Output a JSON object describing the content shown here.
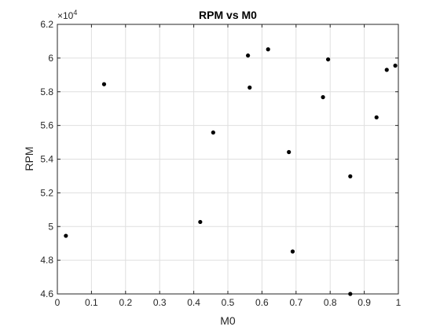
{
  "chart_data": {
    "type": "scatter",
    "title": "RPM vs M0",
    "xlabel": "M0",
    "ylabel": "RPM",
    "exponent_label": "×10",
    "exponent_power": "4",
    "xlim": [
      0,
      1
    ],
    "ylim": [
      46000,
      62000
    ],
    "grid": true,
    "xticks": [
      {
        "value": 0,
        "label": "0"
      },
      {
        "value": 0.1,
        "label": "0.1"
      },
      {
        "value": 0.2,
        "label": "0.2"
      },
      {
        "value": 0.3,
        "label": "0.3"
      },
      {
        "value": 0.4,
        "label": "0.4"
      },
      {
        "value": 0.5,
        "label": "0.5"
      },
      {
        "value": 0.6,
        "label": "0.6"
      },
      {
        "value": 0.7,
        "label": "0.7"
      },
      {
        "value": 0.8,
        "label": "0.8"
      },
      {
        "value": 0.9,
        "label": "0.9"
      },
      {
        "value": 1,
        "label": "1"
      }
    ],
    "yticks": [
      {
        "value": 46000,
        "label": "4.6"
      },
      {
        "value": 48000,
        "label": "4.8"
      },
      {
        "value": 50000,
        "label": "5"
      },
      {
        "value": 52000,
        "label": "5.2"
      },
      {
        "value": 54000,
        "label": "5.4"
      },
      {
        "value": 56000,
        "label": "5.6"
      },
      {
        "value": 58000,
        "label": "5.8"
      },
      {
        "value": 60000,
        "label": "6"
      },
      {
        "value": 62000,
        "label": "6.2"
      }
    ],
    "series": [
      {
        "marker_color": "#000000",
        "points": [
          {
            "x": 0.025,
            "y": 49450
          },
          {
            "x": 0.137,
            "y": 58450
          },
          {
            "x": 0.419,
            "y": 50270
          },
          {
            "x": 0.457,
            "y": 55580
          },
          {
            "x": 0.559,
            "y": 60150
          },
          {
            "x": 0.564,
            "y": 58250
          },
          {
            "x": 0.618,
            "y": 60520
          },
          {
            "x": 0.679,
            "y": 54420
          },
          {
            "x": 0.69,
            "y": 48520
          },
          {
            "x": 0.779,
            "y": 57680
          },
          {
            "x": 0.794,
            "y": 59920
          },
          {
            "x": 0.859,
            "y": 52980
          },
          {
            "x": 0.859,
            "y": 46000
          },
          {
            "x": 0.936,
            "y": 56480
          },
          {
            "x": 0.966,
            "y": 59300
          },
          {
            "x": 0.991,
            "y": 59550
          }
        ]
      }
    ]
  }
}
